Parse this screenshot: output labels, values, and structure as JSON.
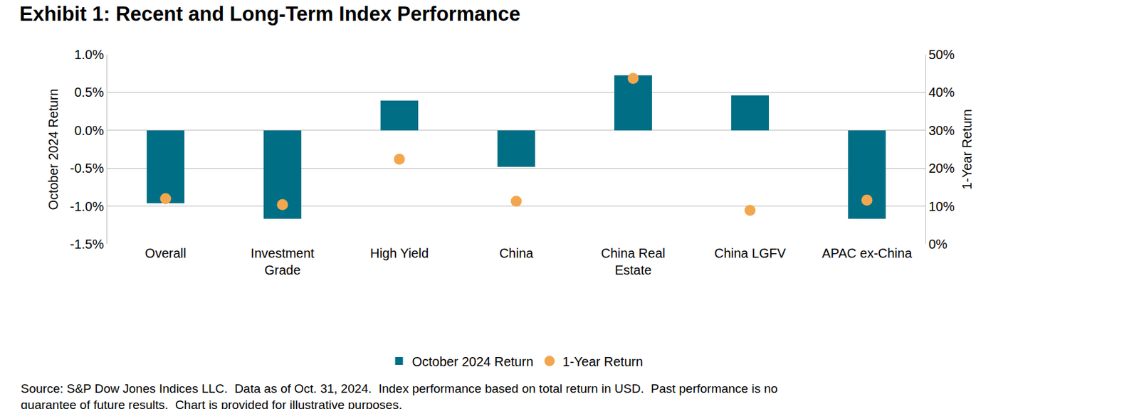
{
  "chart_data": {
    "type": "bar",
    "title": "Exhibit 1: Recent and Long-Term Index Performance",
    "categories": [
      "Overall",
      "Investment Grade",
      "High Yield",
      "China",
      "China Real Estate",
      "China LGFV",
      "APAC ex-China"
    ],
    "series": [
      {
        "name": "October 2024 Return",
        "type": "bar",
        "color": "#006F86",
        "values": [
          -0.96,
          -1.17,
          0.39,
          -0.48,
          0.73,
          0.46,
          -1.17
        ]
      },
      {
        "name": "1-Year Return",
        "type": "scatter",
        "marker": "circle",
        "color": "#F2A74E",
        "axis": "y2",
        "values": [
          12.0,
          10.4,
          22.4,
          11.3,
          43.7,
          8.9,
          11.6
        ]
      }
    ],
    "ylabel": "October 2024 Return",
    "y2label": "1-Year Return",
    "ylim": [
      -1.5,
      1.0
    ],
    "yticks": [
      {
        "value": -1.5,
        "label": "-1.5%"
      },
      {
        "value": -1.0,
        "label": "-1.0%"
      },
      {
        "value": -0.5,
        "label": "-0.5%"
      },
      {
        "value": 0.0,
        "label": "0.0%"
      },
      {
        "value": 0.5,
        "label": "0.5%"
      },
      {
        "value": 1.0,
        "label": "1.0%"
      }
    ],
    "y2lim": [
      0,
      50
    ],
    "y2ticks": [
      {
        "value": 0,
        "label": "0%"
      },
      {
        "value": 10,
        "label": "10%"
      },
      {
        "value": 20,
        "label": "20%"
      },
      {
        "value": 30,
        "label": "30%"
      },
      {
        "value": 40,
        "label": "40%"
      },
      {
        "value": 50,
        "label": "50%"
      }
    ],
    "grid": true,
    "legend": "bottom",
    "footnote": [
      "Source: S&P Dow Jones Indices LLC.  Data as of Oct. 31, 2024.  Index performance based on total return in USD.  Past performance is no",
      "guarantee of future results.  Chart is provided for illustrative purposes."
    ]
  }
}
